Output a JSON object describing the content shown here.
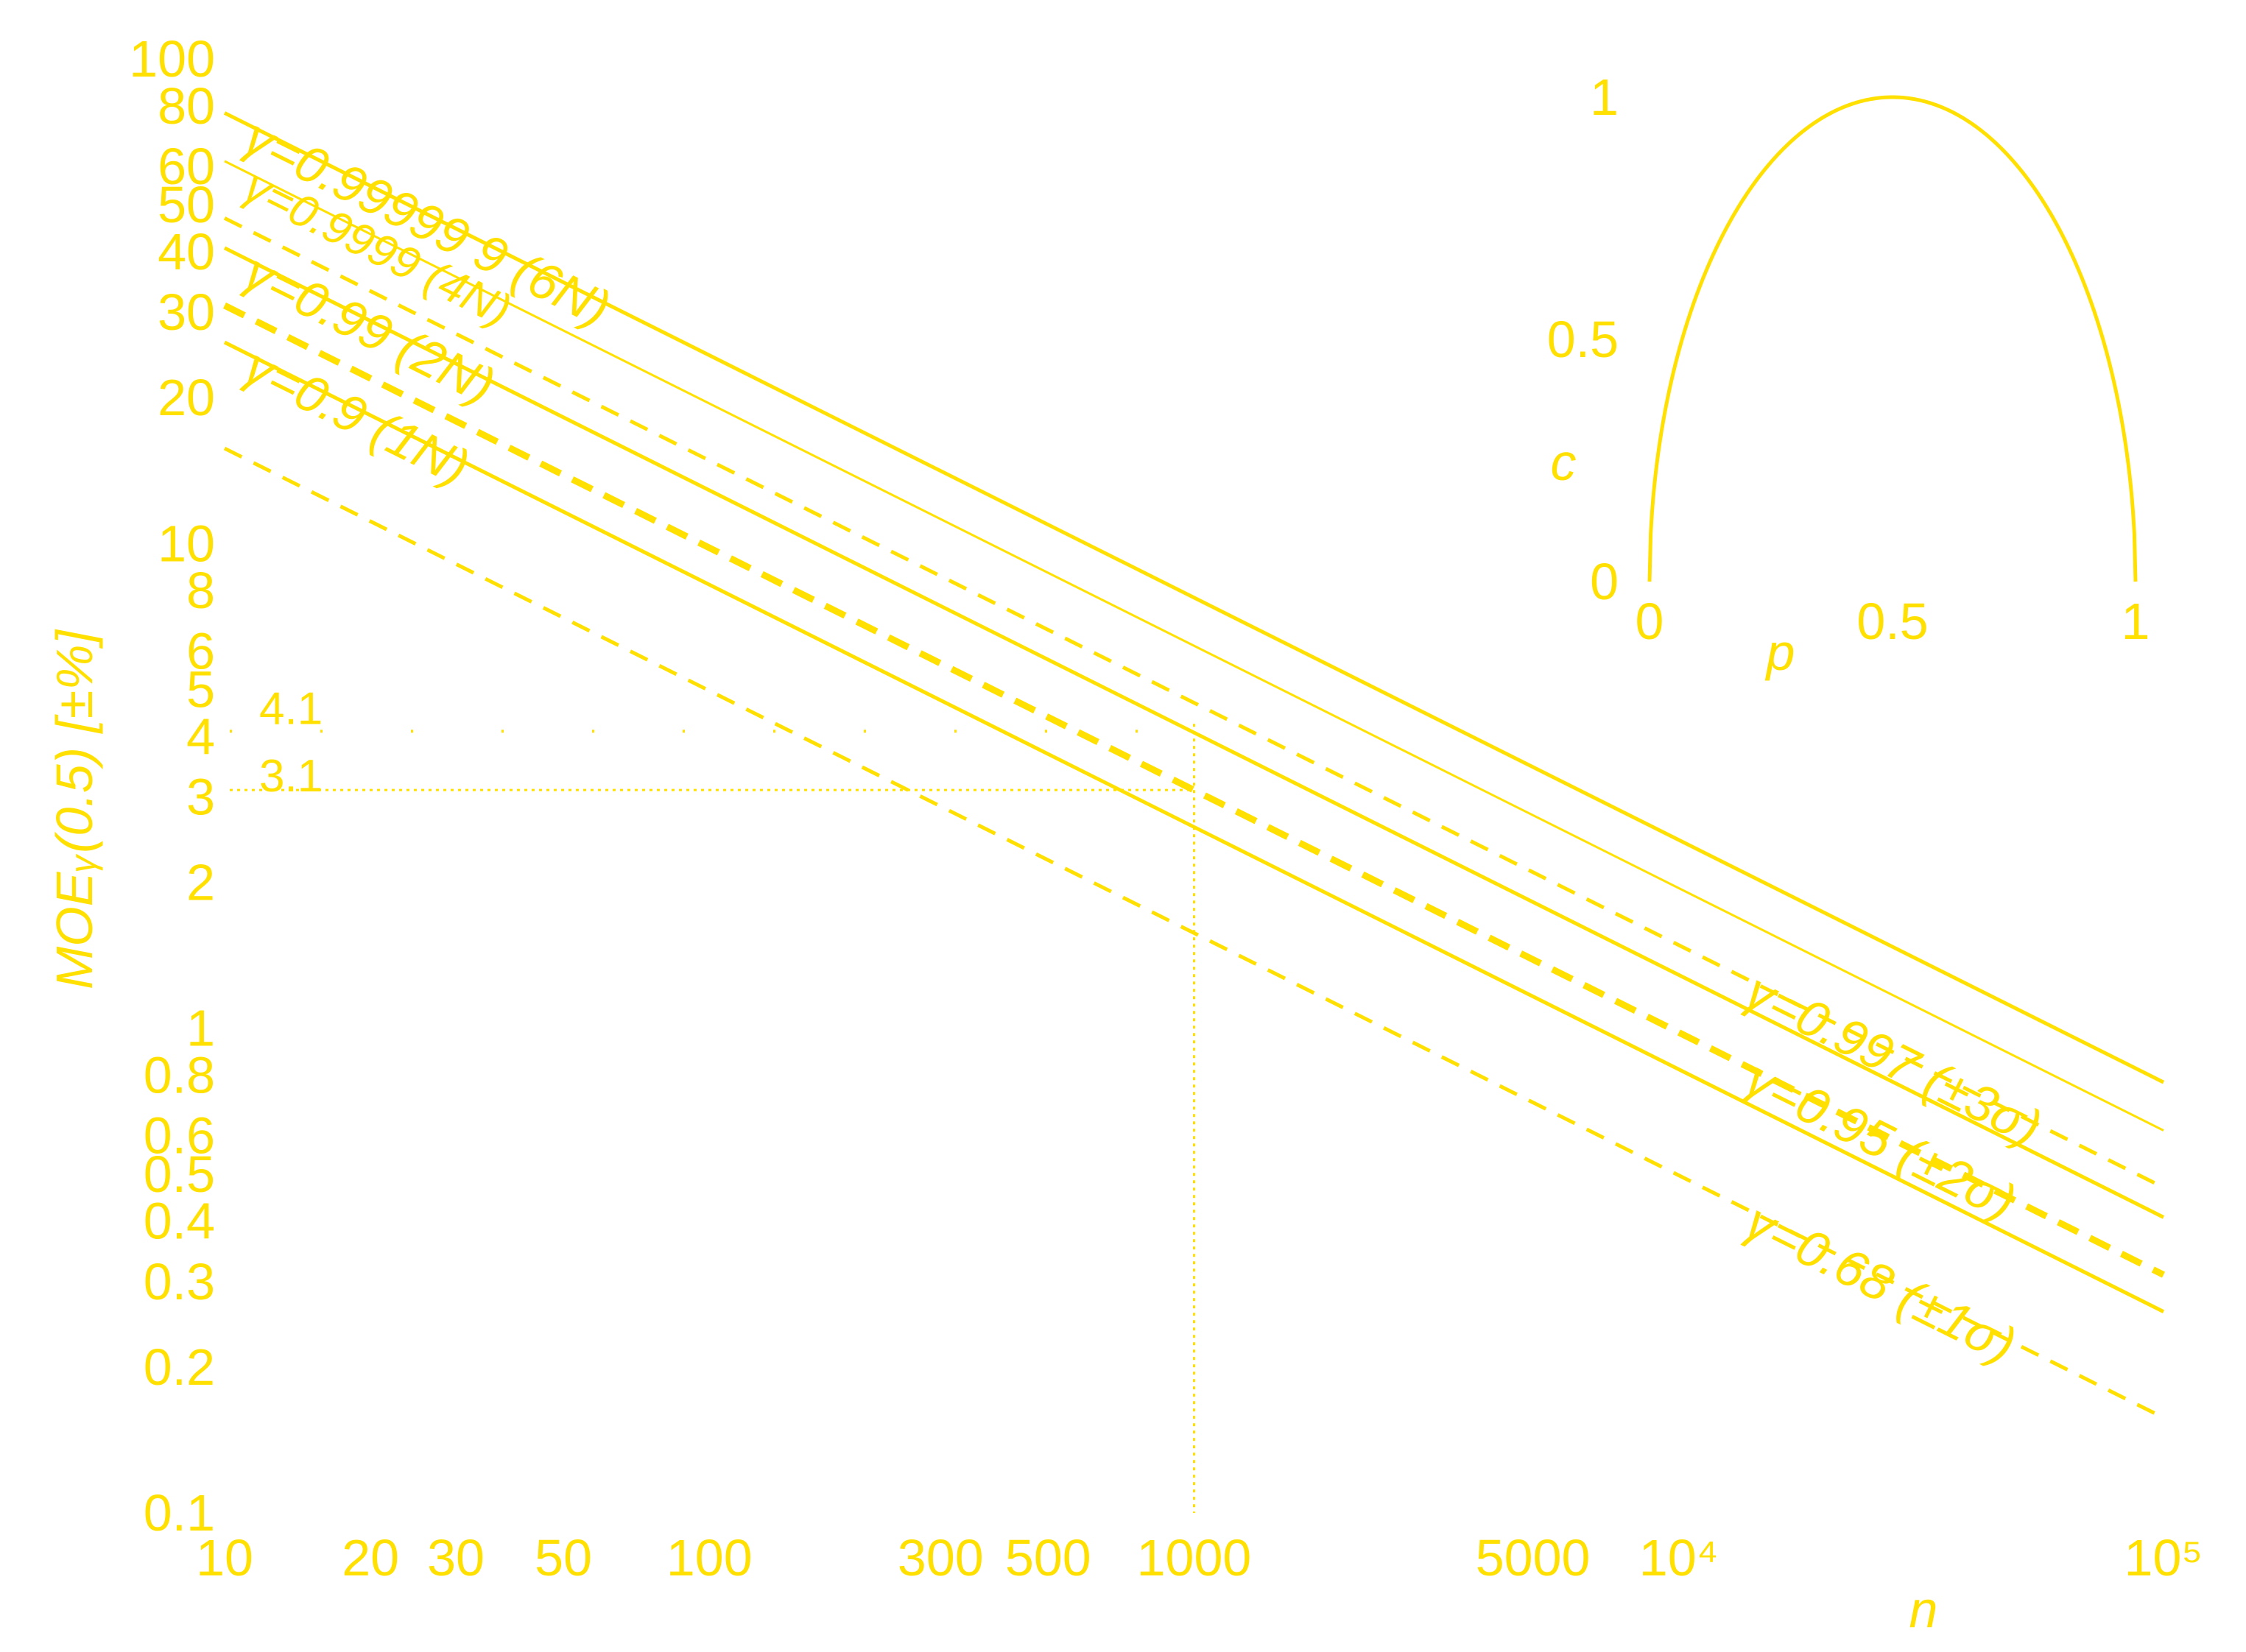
{
  "chart_data": [
    {
      "type": "line",
      "xscale": "log",
      "yscale": "log",
      "xlim": [
        10,
        100000
      ],
      "ylim": [
        0.1,
        100
      ],
      "grid": false,
      "xlabel": "n",
      "ylabel": "MOEᵧ(0.5) [±%]",
      "xticks": [
        {
          "value": 10,
          "label": "10"
        },
        {
          "value": 20,
          "label": "20"
        },
        {
          "value": 30,
          "label": "30"
        },
        {
          "value": 50,
          "label": "50"
        },
        {
          "value": 100,
          "label": "100"
        },
        {
          "value": 300,
          "label": "300"
        },
        {
          "value": 500,
          "label": "500"
        },
        {
          "value": 1000,
          "label": "1000"
        },
        {
          "value": 5000,
          "label": "5000"
        },
        {
          "value": 10000,
          "label": "10⁴"
        },
        {
          "value": 100000,
          "label": "10⁵"
        }
      ],
      "yticks": [
        {
          "value": 0.1,
          "label": "0.1"
        },
        {
          "value": 0.2,
          "label": "0.2"
        },
        {
          "value": 0.3,
          "label": "0.3"
        },
        {
          "value": 0.4,
          "label": "0.4"
        },
        {
          "value": 0.5,
          "label": "0.5"
        },
        {
          "value": 0.6,
          "label": "0.6"
        },
        {
          "value": 0.8,
          "label": "0.8"
        },
        {
          "value": 1,
          "label": "1"
        },
        {
          "value": 2,
          "label": "2"
        },
        {
          "value": 3,
          "label": "3"
        },
        {
          "value": 4,
          "label": "4"
        },
        {
          "value": 5,
          "label": "5"
        },
        {
          "value": 6,
          "label": "6"
        },
        {
          "value": 8,
          "label": "8"
        },
        {
          "value": 10,
          "label": "10"
        },
        {
          "value": 20,
          "label": "20"
        },
        {
          "value": 30,
          "label": "30"
        },
        {
          "value": 40,
          "label": "40"
        },
        {
          "value": 50,
          "label": "50"
        },
        {
          "value": 60,
          "label": "60"
        },
        {
          "value": 80,
          "label": "80"
        },
        {
          "value": 100,
          "label": "100"
        }
      ],
      "series": [
        {
          "name": "γ=0.99999 9 (6N)",
          "z": 4.892,
          "style": "solid",
          "width": "normal",
          "label_end": "left"
        },
        {
          "name": "γ=0.9999 (4N)",
          "z": 3.891,
          "style": "solid",
          "width": "thin",
          "label_end": "left"
        },
        {
          "name": "γ=0.997 (±3σ)",
          "z": 2.968,
          "style": "dashed",
          "width": "normal",
          "label_end": "right"
        },
        {
          "name": "γ=0.99 (2N)",
          "z": 2.576,
          "style": "solid",
          "width": "normal",
          "label_end": "left"
        },
        {
          "name": "γ=0.95 (±2σ)",
          "z": 1.96,
          "style": "dashed",
          "width": "thick",
          "label_end": "right"
        },
        {
          "name": "γ=0.9 (1N)",
          "z": 1.645,
          "style": "solid",
          "width": "normal",
          "label_end": "left"
        },
        {
          "name": "γ=0.68 (±1σ)",
          "z": 0.994,
          "style": "dashed",
          "width": "normal",
          "label_end": "right"
        }
      ],
      "annotations": [
        {
          "text": "4.1",
          "n": 1000,
          "moe": 4.1
        },
        {
          "text": "3.1",
          "n": 1000,
          "moe": 3.1
        }
      ],
      "color": "#FFE000"
    },
    {
      "type": "line",
      "xlabel": "p",
      "ylabel": "c",
      "xlim": [
        0,
        1
      ],
      "ylim": [
        0,
        1
      ],
      "xticks": [
        {
          "value": 0,
          "label": "0"
        },
        {
          "value": 0.5,
          "label": "0.5"
        },
        {
          "value": 1,
          "label": "1"
        }
      ],
      "yticks": [
        {
          "value": 0,
          "label": "0"
        },
        {
          "value": 0.5,
          "label": "0.5"
        },
        {
          "value": 1,
          "label": "1"
        }
      ],
      "curve": "c = 2·sqrt(p·(1−p))",
      "color": "#FFE000"
    }
  ]
}
